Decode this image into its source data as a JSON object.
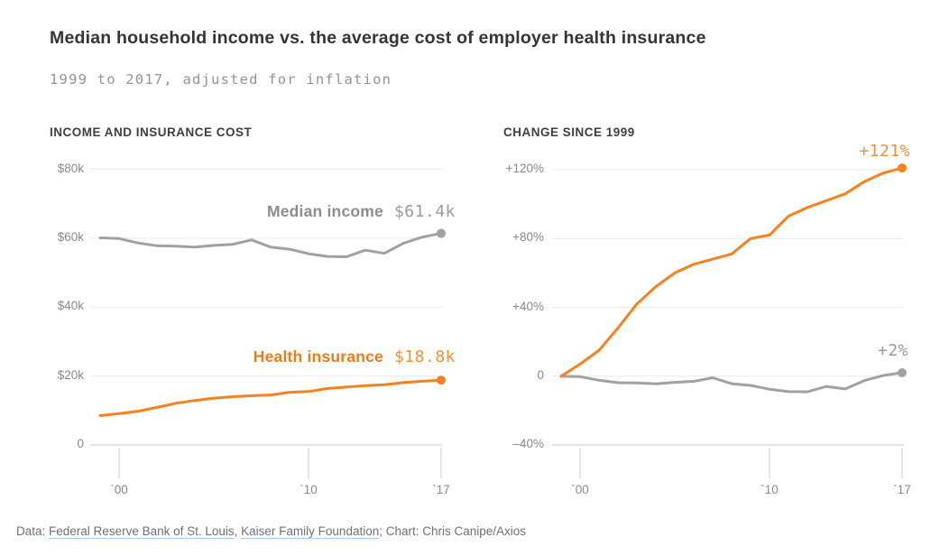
{
  "title": "Median household income vs. the average cost of employer health insurance",
  "subtitle": "1999 to 2017, adjusted for inflation",
  "footer": {
    "prefix": "Data: ",
    "links": [
      "Federal Reserve Bank of St. Louis",
      "Kaiser Family Foundation"
    ],
    "sep": ", ",
    "suffix": "; Chart: Chris Canipe/Axios"
  },
  "colors": {
    "orange": "#f6821f",
    "gray": "#a1a1a3",
    "orange_name": "#e87d1e",
    "orange_value": "#f1913c",
    "gray_name": "#8d8d8f",
    "gray_value": "#9b9b9d",
    "axis_label": "#8a8a8c",
    "grid": "#e9e9e9",
    "axis": "#c9cdd1",
    "title": "#353537",
    "subtitle": "#949496",
    "panel_title": "#3f3f42",
    "footer": "#6e7073",
    "link_underline": "#a9cbdb"
  },
  "chart_data": [
    {
      "type": "line",
      "title": "INCOME AND INSURANCE COST",
      "x": [
        1999,
        2000,
        2001,
        2002,
        2003,
        2004,
        2005,
        2006,
        2007,
        2008,
        2009,
        2010,
        2011,
        2012,
        2013,
        2014,
        2015,
        2016,
        2017
      ],
      "ylim": [
        0,
        80
      ],
      "gridlines": [
        {
          "v": 80,
          "label": "$80k"
        },
        {
          "v": 60,
          "label": "$60k"
        },
        {
          "v": 40,
          "label": "$40k"
        },
        {
          "v": 20,
          "label": "$20k"
        },
        {
          "v": 0,
          "label": "0"
        }
      ],
      "xticks": [
        {
          "x": 2000,
          "label": "`00"
        },
        {
          "x": 2010,
          "label": "`10"
        },
        {
          "x": 2017,
          "label": "`17"
        }
      ],
      "series": [
        {
          "id": "median_income",
          "name": "Median income",
          "end_label": "$61.4k",
          "color": "gray",
          "values": [
            60.1,
            59.9,
            58.6,
            57.8,
            57.7,
            57.4,
            57.9,
            58.2,
            59.5,
            57.4,
            56.8,
            55.5,
            54.7,
            54.6,
            56.5,
            55.6,
            58.5,
            60.3,
            61.4
          ]
        },
        {
          "id": "health_insurance",
          "name": "Health insurance",
          "end_label": "$18.8k",
          "color": "orange",
          "values": [
            8.5,
            9.1,
            9.8,
            10.9,
            12.1,
            12.9,
            13.6,
            14.0,
            14.3,
            14.5,
            15.3,
            15.5,
            16.4,
            16.8,
            17.2,
            17.5,
            18.1,
            18.5,
            18.8
          ]
        }
      ]
    },
    {
      "type": "line",
      "title": "CHANGE SINCE 1999",
      "x": [
        1999,
        2000,
        2001,
        2002,
        2003,
        2004,
        2005,
        2006,
        2007,
        2008,
        2009,
        2010,
        2011,
        2012,
        2013,
        2014,
        2015,
        2016,
        2017
      ],
      "ylim": [
        -40,
        120
      ],
      "gridlines": [
        {
          "v": 120,
          "label": "+120%"
        },
        {
          "v": 80,
          "label": "+80%"
        },
        {
          "v": 40,
          "label": "+40%"
        },
        {
          "v": 0,
          "label": "0"
        },
        {
          "v": -40,
          "label": "–40%"
        }
      ],
      "xticks": [
        {
          "x": 2000,
          "label": "`00"
        },
        {
          "x": 2010,
          "label": "`10"
        },
        {
          "x": 2017,
          "label": "`17"
        }
      ],
      "series": [
        {
          "id": "median_income_change",
          "name": "Median income",
          "end_label": "+2%",
          "color": "gray",
          "values": [
            0,
            -0.3,
            -2.4,
            -3.8,
            -3.9,
            -4.5,
            -3.6,
            -3.0,
            -0.9,
            -4.4,
            -5.4,
            -7.6,
            -9.0,
            -9.1,
            -6.0,
            -7.4,
            -2.6,
            0.4,
            2
          ]
        },
        {
          "id": "health_insurance_change",
          "name": "Health insurance",
          "end_label": "+121%",
          "color": "orange",
          "values": [
            0,
            7,
            15,
            28,
            42,
            52,
            60,
            65,
            68,
            71,
            80,
            82,
            93,
            98,
            102,
            106,
            113,
            118,
            121
          ]
        }
      ]
    }
  ]
}
